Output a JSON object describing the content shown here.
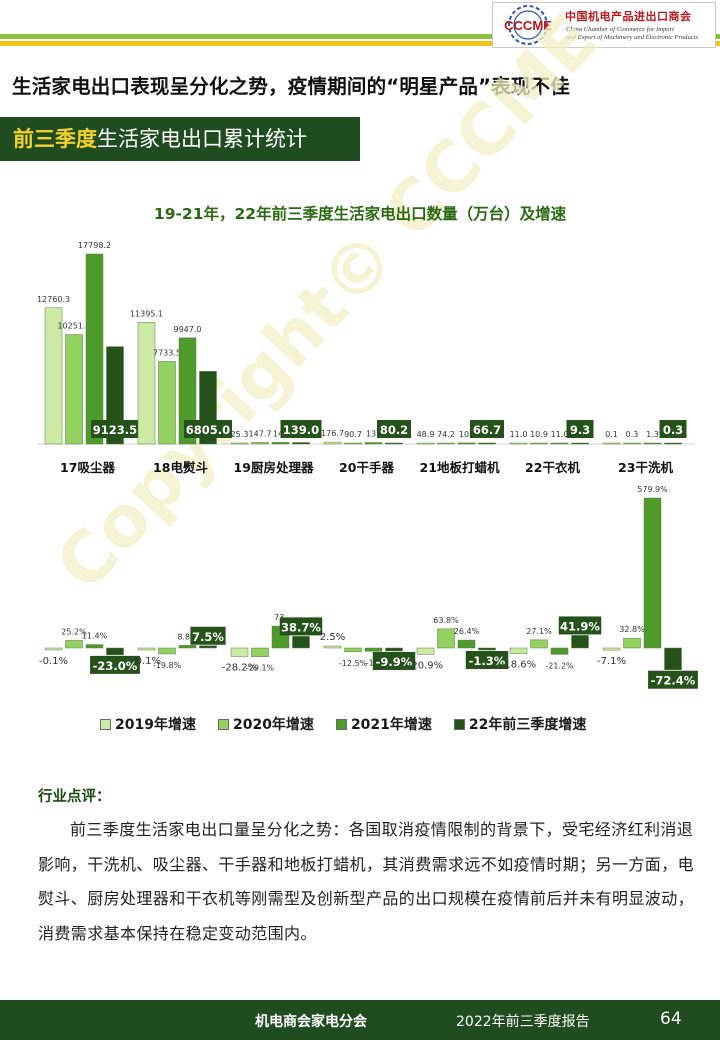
{
  "header": {
    "logo_acronym": "CCCME",
    "org_cn": "中国机电产品进出口商会",
    "org_en_line1": "China Chamber of Commerce for Import",
    "org_en_line2": "and Export of Machinery and Electronic Products",
    "stripe_colors": [
      "#8bbf3f",
      "#f0c419"
    ]
  },
  "headline": "生活家电出口表现呈分化之势，疫情期间的“明星产品”表现不佳",
  "section": {
    "highlight": "前三季度",
    "rest": "生活家电出口累计统计"
  },
  "watermark": "Copyright© CCCME",
  "chart_data": {
    "type": "bar",
    "title": "19-21年，22年前三季度生活家电出口数量（万台）及增速",
    "categories": [
      "17吸尘器",
      "18电熨斗",
      "19厨房处理器",
      "20干手器",
      "21地板打蜡机",
      "22干衣机",
      "23干洗机"
    ],
    "quantity_series": [
      {
        "name": "2019",
        "color": "#cdeaa5",
        "values": [
          12760.3,
          11395.1,
          25.3,
          176.7,
          48.9,
          11.0,
          0.1
        ]
      },
      {
        "name": "2020",
        "color": "#93d160",
        "values": [
          10251.8,
          7733.5,
          147.7,
          90.7,
          74.2,
          10.9,
          0.3
        ]
      },
      {
        "name": "2021",
        "color": "#4e9b2b",
        "values": [
          17798.2,
          9947.0,
          149.0,
          137.0,
          101.0,
          11.0,
          1.3
        ]
      },
      {
        "name": "22年前三季度",
        "color": "#25521a",
        "values": [
          9123.5,
          6805.0,
          139.0,
          80.2,
          66.7,
          9.3,
          0.3
        ]
      }
    ],
    "quantity_labels": [
      [
        "12760.3",
        "10251.8",
        "17798.2",
        "9123.5"
      ],
      [
        "11395.1",
        "7733.5",
        "9947.0",
        "6805.0"
      ],
      [
        "25.3",
        "147.7",
        "149",
        "139.0"
      ],
      [
        "176.7",
        "90.7",
        "137",
        "80.2"
      ],
      [
        "48.9",
        "74.2",
        "101",
        "66.7"
      ],
      [
        "11.0",
        "10.9",
        "11.0",
        "9.3"
      ],
      [
        "0.1",
        "0.3",
        "1.3",
        "0.3"
      ]
    ],
    "growth_series": [
      {
        "name": "2019年增速",
        "color": "#cdeaa5",
        "values": [
          -0.1,
          -0.1,
          -28.2,
          2.5,
          -20.9,
          -18.6,
          -7.1
        ]
      },
      {
        "name": "2020年增速",
        "color": "#93d160",
        "values": [
          25.2,
          -19.8,
          -29.1,
          -12.5,
          63.8,
          27.1,
          32.8
        ]
      },
      {
        "name": "2021年增速",
        "color": "#4e9b2b",
        "values": [
          11.4,
          8.8,
          73.0,
          -11.0,
          26.4,
          -21.2,
          579.9
        ]
      },
      {
        "name": "22年前三季度增速",
        "color": "#25521a",
        "values": [
          -23.0,
          7.5,
          38.7,
          -9.9,
          -1.3,
          41.9,
          -72.4
        ]
      }
    ],
    "growth_labels": [
      [
        "-0.1%",
        "25.2%",
        "11.4%",
        "-23.0%"
      ],
      [
        "-0.1%",
        "-19.8%",
        "8.8%",
        "7.5%"
      ],
      [
        "-28.2%",
        "-29.1%",
        "73.",
        "38.7%"
      ],
      [
        "2.5%",
        "-12.5%",
        "-11.",
        "-9.9%"
      ],
      [
        "-20.9%",
        "63.8%",
        "26.4%",
        "-1.3%"
      ],
      [
        "-18.6%",
        "27.1%",
        "-21.2%",
        "41.9%"
      ],
      [
        "-7.1%",
        "32.8%",
        "579.9%",
        "-72.4%"
      ]
    ],
    "legend_position": "bottom",
    "grid": false
  },
  "comment": {
    "title": "行业点评：",
    "text": "前三季度生活家电出口量呈分化之势：各国取消疫情限制的背景下，受宅经济红利消退影响，干洗机、吸尘器、干手器和地板打蜡机，其消费需求远不如疫情时期；另一方面，电熨斗、厨房处理器和干衣机等刚需型及创新型产品的出口规模在疫情前后并未有明显波动，消费需求基本保持在稳定变动范围内。"
  },
  "footer": {
    "org": "机电商会家电分会",
    "report": "2022年前三季度报告",
    "page": "64"
  }
}
